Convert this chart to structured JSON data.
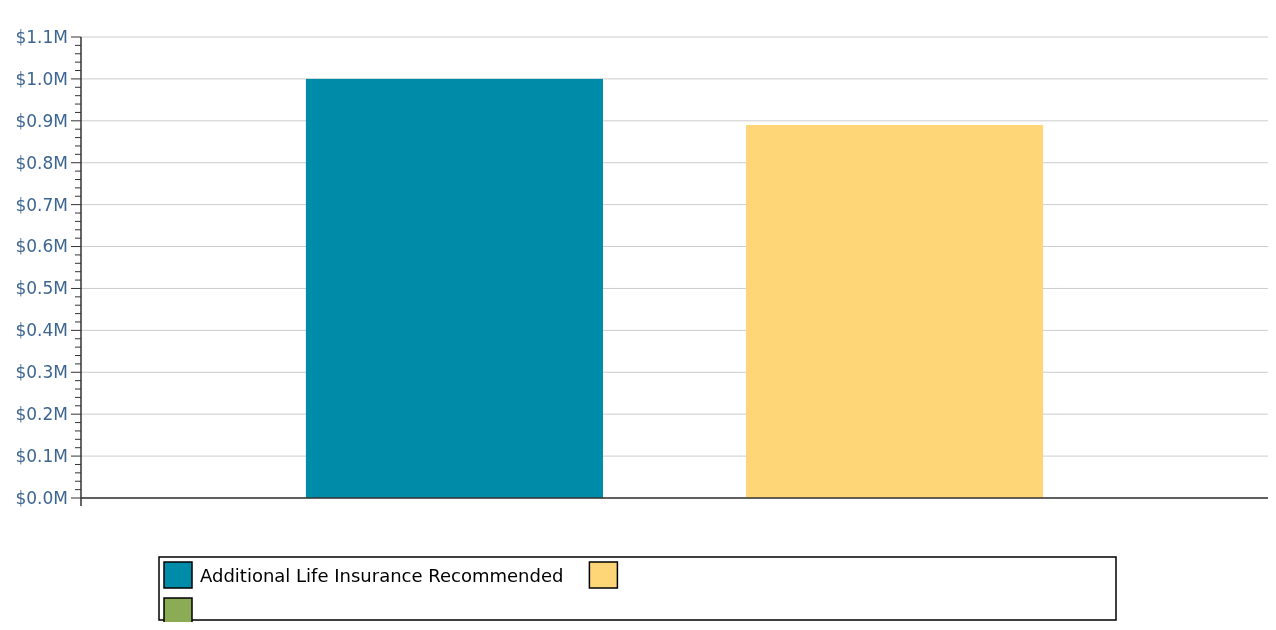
{
  "chart_data": {
    "type": "bar",
    "stacked": true,
    "categories": [
      null,
      null
    ],
    "series": [
      {
        "name": "Additional Life Insurance Recommended",
        "color": "#008ba8",
        "values": [
          1.0,
          null
        ]
      },
      {
        "color": "#ffd677",
        "values": [
          null,
          0.89
        ]
      },
      {
        "color": "#8bab55",
        "values": [
          null,
          null
        ]
      }
    ],
    "ylim": [
      0,
      1.1
    ],
    "yticks": [
      {
        "value": 0,
        "label": "$0.0M"
      },
      {
        "value": 0.02,
        "label": null
      },
      {
        "value": 0.04,
        "label": null
      },
      {
        "value": 0.06,
        "label": null
      },
      {
        "value": 0.08,
        "label": null
      },
      {
        "value": 0.1,
        "label": "$0.1M"
      },
      {
        "value": 0.12,
        "label": null
      },
      {
        "value": 0.14,
        "label": null
      },
      {
        "value": 0.16,
        "label": null
      },
      {
        "value": 0.18,
        "label": null
      },
      {
        "value": 0.2,
        "label": "$0.2M"
      },
      {
        "value": 0.22,
        "label": null
      },
      {
        "value": 0.24,
        "label": null
      },
      {
        "value": 0.26,
        "label": null
      },
      {
        "value": 0.28,
        "label": null
      },
      {
        "value": 0.3,
        "label": "$0.3M"
      },
      {
        "value": 0.32,
        "label": null
      },
      {
        "value": 0.34,
        "label": null
      },
      {
        "value": 0.36,
        "label": null
      },
      {
        "value": 0.38,
        "label": null
      },
      {
        "value": 0.4,
        "label": "$0.4M"
      },
      {
        "value": 0.42,
        "label": null
      },
      {
        "value": 0.44,
        "label": null
      },
      {
        "value": 0.46,
        "label": null
      },
      {
        "value": 0.48,
        "label": null
      },
      {
        "value": 0.5,
        "label": "$0.5M"
      },
      {
        "value": 0.52,
        "label": null
      },
      {
        "value": 0.54,
        "label": null
      },
      {
        "value": 0.56,
        "label": null
      },
      {
        "value": 0.58,
        "label": null
      },
      {
        "value": 0.6,
        "label": "$0.6M"
      },
      {
        "value": 0.62,
        "label": null
      },
      {
        "value": 0.64,
        "label": null
      },
      {
        "value": 0.66,
        "label": null
      },
      {
        "value": 0.68,
        "label": null
      },
      {
        "value": 0.7,
        "label": "$0.7M"
      },
      {
        "value": 0.72,
        "label": null
      },
      {
        "value": 0.74,
        "label": null
      },
      {
        "value": 0.76,
        "label": null
      },
      {
        "value": 0.78,
        "label": null
      },
      {
        "value": 0.8,
        "label": "$0.8M"
      },
      {
        "value": 0.82,
        "label": null
      },
      {
        "value": 0.84,
        "label": null
      },
      {
        "value": 0.86,
        "label": null
      },
      {
        "value": 0.88,
        "label": null
      },
      {
        "value": 0.9,
        "label": "$0.9M"
      },
      {
        "value": 0.92,
        "label": null
      },
      {
        "value": 0.94,
        "label": null
      },
      {
        "value": 0.96,
        "label": null
      },
      {
        "value": 0.98,
        "label": null
      },
      {
        "value": 1.0,
        "label": "$1.0M"
      },
      {
        "value": 1.02,
        "label": null
      },
      {
        "value": 1.04,
        "label": null
      },
      {
        "value": 1.06,
        "label": null
      },
      {
        "value": 1.08,
        "label": null
      },
      {
        "value": 1.1,
        "label": "$1.1M"
      }
    ],
    "grid": "y",
    "legend": "bottom"
  }
}
